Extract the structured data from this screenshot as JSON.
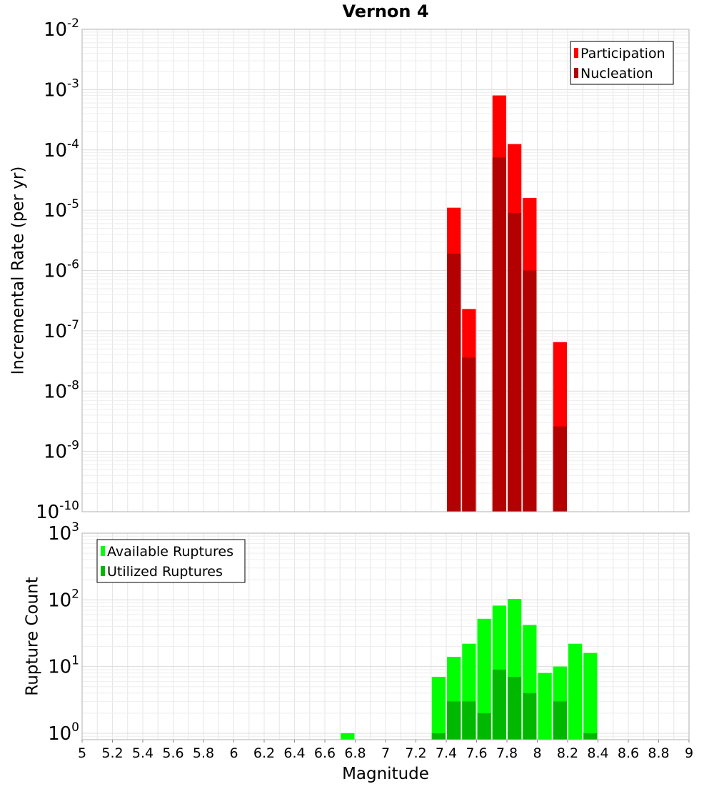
{
  "chart_data": [
    {
      "type": "bar",
      "title": "Vernon 4",
      "ylabel": "Incremental Rate (per yr)",
      "xlabel": "",
      "xlim": [
        5,
        9
      ],
      "ylim": [
        1e-10,
        0.01
      ],
      "y_scale": "log",
      "bar_width": 0.1,
      "grid": true,
      "legend_position": "top-right",
      "y_ticks": [
        {
          "base": "10",
          "exp": "-10"
        },
        {
          "base": "10",
          "exp": "-9"
        },
        {
          "base": "10",
          "exp": "-8"
        },
        {
          "base": "10",
          "exp": "-7"
        },
        {
          "base": "10",
          "exp": "-6"
        },
        {
          "base": "10",
          "exp": "-5"
        },
        {
          "base": "10",
          "exp": "-4"
        },
        {
          "base": "10",
          "exp": "-3"
        },
        {
          "base": "10",
          "exp": "-2"
        }
      ],
      "series": [
        {
          "name": "Participation",
          "color": "#ff0000",
          "x": [
            7.45,
            7.55,
            7.75,
            7.85,
            7.95,
            8.15
          ],
          "values": [
            1.1e-05,
            2.3e-07,
            0.0008,
            0.000125,
            1.6e-05,
            6.5e-08
          ]
        },
        {
          "name": "Nucleation",
          "color": "#b30000",
          "x": [
            7.45,
            7.55,
            7.75,
            7.85,
            7.95,
            8.15
          ],
          "values": [
            1.9e-06,
            3.6e-08,
            7.5e-05,
            9e-06,
            1e-06,
            2.6e-09
          ]
        }
      ]
    },
    {
      "type": "bar",
      "ylabel": "Rupture Count",
      "xlabel": "Magnitude",
      "xlim": [
        5,
        9
      ],
      "ylim": [
        0.8,
        1000
      ],
      "y_scale": "log",
      "bar_width": 0.1,
      "grid": true,
      "legend_position": "top-left",
      "x_ticks": [
        "5",
        "5.2",
        "5.4",
        "5.6",
        "5.8",
        "6",
        "6.2",
        "6.4",
        "6.6",
        "6.8",
        "7",
        "7.2",
        "7.4",
        "7.6",
        "7.8",
        "8",
        "8.2",
        "8.4",
        "8.6",
        "8.8",
        "9"
      ],
      "y_ticks": [
        {
          "base": "10",
          "exp": "0"
        },
        {
          "base": "10",
          "exp": "1"
        },
        {
          "base": "10",
          "exp": "2"
        },
        {
          "base": "10",
          "exp": "3"
        }
      ],
      "series": [
        {
          "name": "Available Ruptures",
          "color": "#00ff00",
          "x": [
            6.75,
            7.35,
            7.45,
            7.55,
            7.65,
            7.75,
            7.85,
            7.95,
            8.05,
            8.15,
            8.25,
            8.35
          ],
          "values": [
            1,
            7,
            14,
            22,
            52,
            82,
            103,
            42,
            8,
            10,
            22,
            16
          ]
        },
        {
          "name": "Utilized Ruptures",
          "color": "#00b800",
          "x": [
            7.35,
            7.45,
            7.55,
            7.65,
            7.75,
            7.85,
            7.95,
            8.15,
            8.35
          ],
          "values": [
            1,
            3,
            3,
            2,
            9,
            7,
            4,
            3,
            1
          ]
        }
      ]
    }
  ]
}
